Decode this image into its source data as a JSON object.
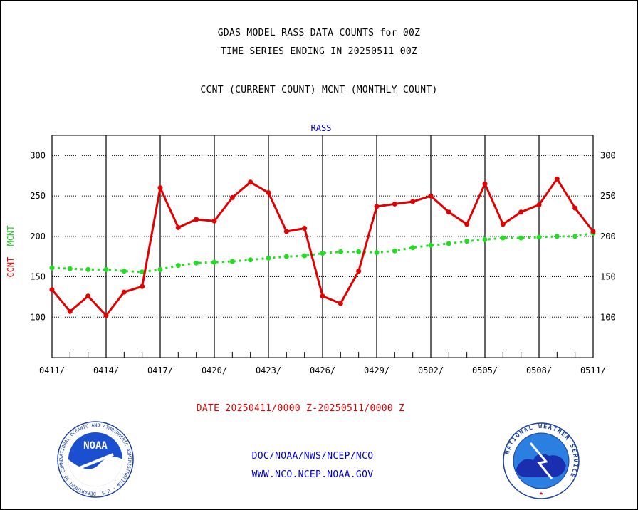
{
  "header": {
    "line1": "GDAS MODEL RASS DATA COUNTS for 00Z",
    "line2": "TIME SERIES ENDING IN 20250511 00Z",
    "line3": "CCNT (CURRENT COUNT) MCNT (MONTHLY COUNT)"
  },
  "footer": {
    "date_range": "DATE 20250411/0000 Z-20250511/0000 Z",
    "org_path": "DOC/NOAA/NWS/NCEP/NCO",
    "website": "WWW.NCO.NCEP.NOAA.GOV"
  },
  "logos": {
    "left_text": "NOAA",
    "left_ring": "NATIONAL OCEANIC AND ATMOSPHERIC ADMINISTRATION · U.S. DEPARTMENT OF COMMERCE",
    "right_ring": "NATIONAL WEATHER SERVICE"
  },
  "colors": {
    "ccnt": "#e00000",
    "mcnt": "#22dd22",
    "subtitle": "#0000cc"
  },
  "chart_data": {
    "type": "line",
    "title": "RASS",
    "ylabel_parts": [
      "CCNT",
      "MCNT"
    ],
    "ylim": [
      50,
      325
    ],
    "yticks": [
      100,
      150,
      200,
      250,
      300
    ],
    "xlim": [
      0,
      30
    ],
    "xtick_labels": [
      "0411/",
      "0414/",
      "0417/",
      "0420/",
      "0423/",
      "0426/",
      "0429/",
      "0502/",
      "0505/",
      "0508/",
      "0511/"
    ],
    "grid": true,
    "x_dates": [
      "0411",
      "0412",
      "0413",
      "0414",
      "0415",
      "0416",
      "0417",
      "0418",
      "0419",
      "0420",
      "0421",
      "0422",
      "0423",
      "0424",
      "0425",
      "0426",
      "0427",
      "0428",
      "0429",
      "0430",
      "0501",
      "0502",
      "0503",
      "0504",
      "0505",
      "0506",
      "0507",
      "0508",
      "0509",
      "0510",
      "0511"
    ],
    "series": [
      {
        "name": "CCNT",
        "values": [
          134,
          107,
          126,
          102,
          131,
          138,
          260,
          211,
          221,
          219,
          248,
          267,
          254,
          206,
          210,
          126,
          117,
          157,
          237,
          240,
          243,
          250,
          230,
          215,
          265,
          215,
          230,
          239,
          271,
          235,
          206
        ]
      },
      {
        "name": "MCNT",
        "values": [
          161,
          160,
          159,
          159,
          157,
          156,
          159,
          164,
          167,
          168,
          169,
          171,
          173,
          175,
          176,
          179,
          181,
          181,
          180,
          182,
          186,
          189,
          191,
          194,
          196,
          198,
          198,
          199,
          200,
          200,
          204
        ]
      }
    ]
  }
}
